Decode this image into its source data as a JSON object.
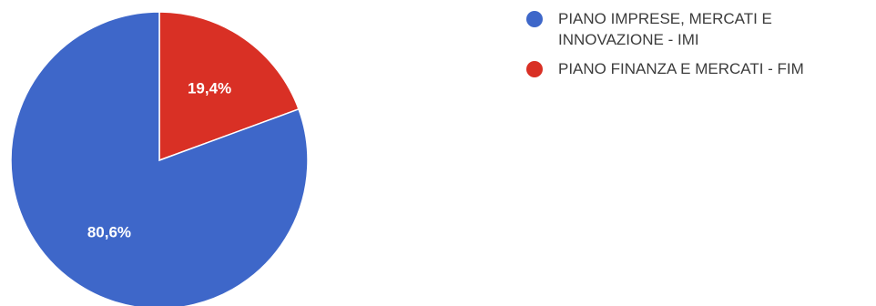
{
  "chart_data": {
    "type": "pie",
    "title": "",
    "start_angle_deg": 90,
    "direction": "clockwise",
    "legend_position": "right",
    "slices": [
      {
        "label": "PIANO FINANZA E MERCATI - FIM",
        "value": 19.4,
        "display": "19,4%",
        "color": "#d93025"
      },
      {
        "label": "PIANO IMPRESE, MERCATI E INNOVAZIONE - IMI",
        "value": 80.6,
        "display": "80,6%",
        "color": "#3e67c9"
      }
    ],
    "legend": [
      {
        "label": "PIANO IMPRESE, MERCATI E INNOVAZIONE - IMI",
        "color": "#3e67c9"
      },
      {
        "label": "PIANO FINANZA E MERCATI - FIM",
        "color": "#d93025"
      }
    ]
  }
}
